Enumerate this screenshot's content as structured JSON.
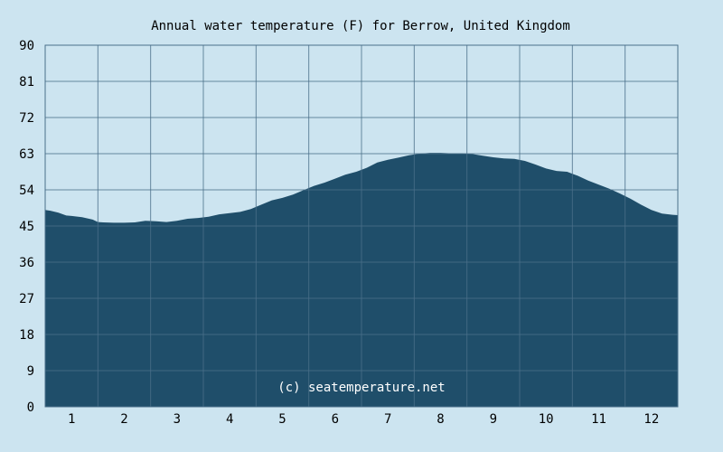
{
  "chart_data": {
    "type": "area",
    "title": "Annual water temperature (F) for Berrow, United Kingdom",
    "xlabel": "",
    "ylabel": "",
    "ylim": [
      0,
      90
    ],
    "xlim": [
      0.5,
      12.5
    ],
    "y_ticks": [
      "0",
      "9",
      "18",
      "27",
      "36",
      "45",
      "54",
      "63",
      "72",
      "81",
      "90"
    ],
    "x_ticks": [
      "1",
      "2",
      "3",
      "4",
      "5",
      "6",
      "7",
      "8",
      "9",
      "10",
      "11",
      "12"
    ],
    "grid": true,
    "watermark": "(c) seatemperature.net",
    "colors": {
      "background": "#cce4f0",
      "area_fill": "#1f4e6a",
      "grid_line": "#4a6f8a",
      "grid_line_on_area": "#3f6a86"
    },
    "series": [
      {
        "x": [
          0.5,
          0.6,
          0.75,
          0.9,
          1.0,
          1.2,
          1.4,
          1.5,
          1.6,
          1.8,
          2.0,
          2.2,
          2.4,
          2.6,
          2.8,
          3.0,
          3.2,
          3.4,
          3.6,
          3.8,
          4.0,
          4.2,
          4.4,
          4.6,
          4.8,
          5.0,
          5.2,
          5.4,
          5.6,
          5.8,
          6.0,
          6.2,
          6.4,
          6.6,
          6.8,
          7.0,
          7.2,
          7.4,
          7.6,
          7.8,
          8.0,
          8.2,
          8.4,
          8.6,
          8.8,
          9.0,
          9.2,
          9.4,
          9.6,
          9.8,
          10.0,
          10.2,
          10.4,
          10.6,
          10.8,
          11.0,
          11.2,
          11.4,
          11.6,
          11.8,
          12.0,
          12.2,
          12.4,
          12.5
        ],
        "values": [
          49.0,
          48.8,
          48.3,
          47.6,
          47.5,
          47.2,
          46.6,
          46.0,
          45.9,
          45.8,
          45.8,
          45.9,
          46.3,
          46.2,
          46.0,
          46.3,
          46.8,
          47.0,
          47.3,
          47.9,
          48.2,
          48.5,
          49.2,
          50.3,
          51.4,
          52.0,
          52.8,
          53.9,
          55.0,
          55.8,
          56.8,
          57.8,
          58.5,
          59.5,
          60.8,
          61.5,
          62.0,
          62.6,
          63.0,
          63.2,
          63.2,
          63.1,
          63.1,
          62.9,
          62.5,
          62.1,
          61.8,
          61.7,
          61.2,
          60.3,
          59.3,
          58.7,
          58.5,
          57.5,
          56.3,
          55.3,
          54.3,
          53.1,
          51.8,
          50.3,
          49.0,
          48.1,
          47.8,
          47.7
        ]
      }
    ]
  }
}
